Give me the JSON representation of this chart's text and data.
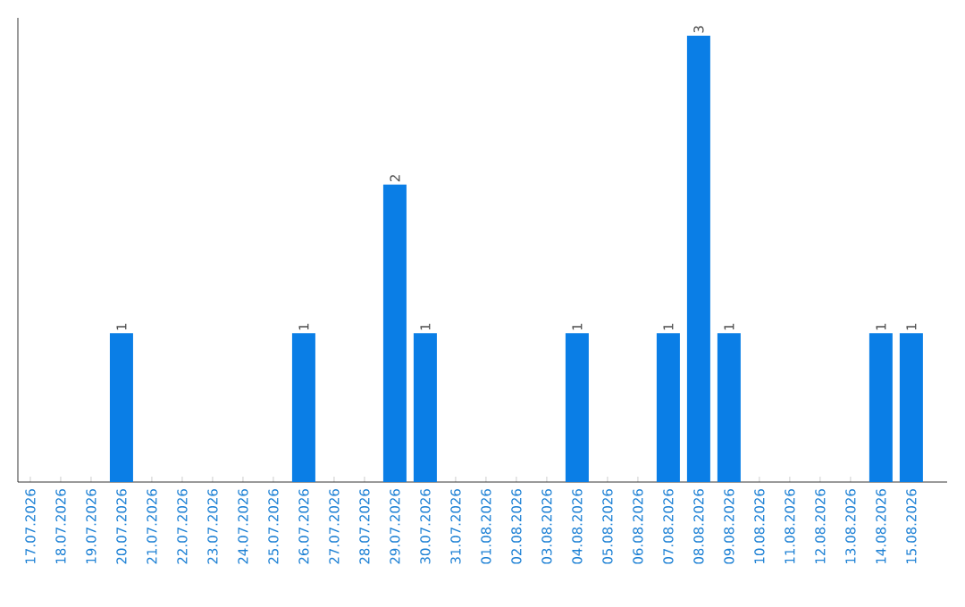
{
  "chart_data": {
    "type": "bar",
    "categories": [
      "17.07.2026",
      "18.07.2026",
      "19.07.2026",
      "20.07.2026",
      "21.07.2026",
      "22.07.2026",
      "23.07.2026",
      "24.07.2026",
      "25.07.2026",
      "26.07.2026",
      "27.07.2026",
      "28.07.2026",
      "29.07.2026",
      "30.07.2026",
      "31.07.2026",
      "01.08.2026",
      "02.08.2026",
      "03.08.2026",
      "04.08.2026",
      "05.08.2026",
      "06.08.2026",
      "07.08.2026",
      "08.08.2026",
      "09.08.2026",
      "10.08.2026",
      "11.08.2026",
      "12.08.2026",
      "13.08.2026",
      "14.08.2026",
      "15.08.2026"
    ],
    "values": [
      0,
      0,
      0,
      1,
      0,
      0,
      0,
      0,
      0,
      1,
      0,
      0,
      2,
      1,
      0,
      0,
      0,
      0,
      1,
      0,
      0,
      1,
      3,
      1,
      0,
      0,
      0,
      0,
      1,
      1
    ],
    "value_labels": [
      null,
      null,
      null,
      "1",
      null,
      null,
      null,
      null,
      null,
      "1",
      null,
      null,
      "2",
      "1",
      null,
      null,
      null,
      null,
      "1",
      null,
      null,
      "1",
      "3",
      "1",
      null,
      null,
      null,
      null,
      "1",
      "1"
    ],
    "color": "#0a7ee6"
  }
}
